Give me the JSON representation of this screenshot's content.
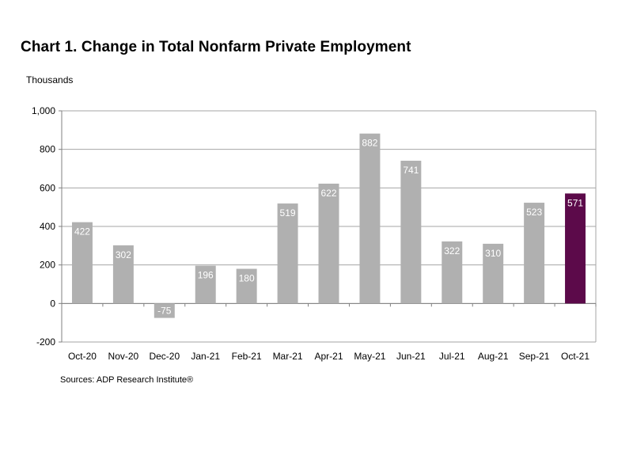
{
  "title": "Chart 1. Change in Total Nonfarm Private Employment",
  "unit_label": "Thousands",
  "source": "Sources: ADP Research Institute®",
  "colors": {
    "bar": "#b0b0b0",
    "highlight": "#5c0a4a",
    "grid": "#a6a6a6",
    "axis": "#808080",
    "value_label": "#ffffff"
  },
  "chart_data": {
    "type": "bar",
    "title": "Chart 1. Change in Total Nonfarm Private Employment",
    "xlabel": "",
    "ylabel": "Thousands",
    "categories": [
      "Oct-20",
      "Nov-20",
      "Dec-20",
      "Jan-21",
      "Feb-21",
      "Mar-21",
      "Apr-21",
      "May-21",
      "Jun-21",
      "Jul-21",
      "Aug-21",
      "Sep-21",
      "Oct-21"
    ],
    "values": [
      422,
      302,
      -75,
      196,
      180,
      519,
      622,
      882,
      741,
      322,
      310,
      523,
      571
    ],
    "value_labels": [
      "422",
      "302",
      "-75",
      "196",
      "180",
      "519",
      "622",
      "882",
      "741",
      "322",
      "310",
      "523",
      "571"
    ],
    "highlight_category": "Oct-21",
    "ylim": [
      -200,
      1000
    ],
    "yticks": [
      -200,
      0,
      200,
      400,
      600,
      800,
      1000
    ],
    "ytick_labels": [
      "-200",
      "0",
      "200",
      "400",
      "600",
      "800",
      "1,000"
    ],
    "grid": true,
    "legend": "none"
  }
}
